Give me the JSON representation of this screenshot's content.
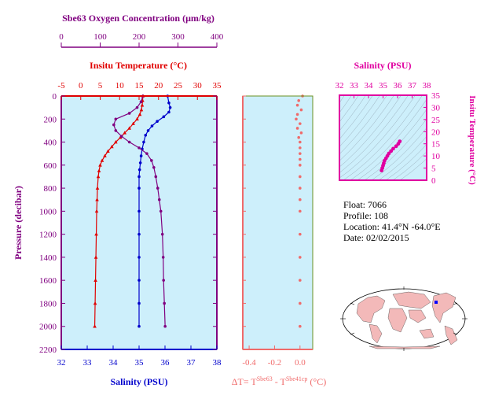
{
  "colors": {
    "oxygen": "#800080",
    "temperature": "#e00000",
    "salinity": "#0000cc",
    "delta_t": "#f06a6a",
    "ts": "#e000a0",
    "panel_bg": "#cdeffb",
    "frame": "#6a9020"
  },
  "axes": {
    "oxygen_title": "Sbe63 Oxygen Concentration (μm/kg)",
    "temp_title": "Insitu Temperature (°C)",
    "salinity_title": "Salinity (PSU)",
    "pressure_title": "Pressure (decibar)",
    "delta_title": "ΔT= T",
    "delta_sup1": "Sbe63",
    "delta_mid": " - T",
    "delta_sup2": "Sbe41cp",
    "delta_unit": " (°C)",
    "ts_sal_title": "Salinity (PSU)",
    "ts_temp_title": "Insitu Temperature (°C)",
    "oxygen_ticks": [
      "0",
      "100",
      "200",
      "300",
      "400"
    ],
    "temp_ticks": [
      "-5",
      "0",
      "5",
      "10",
      "15",
      "20",
      "25",
      "30",
      "35"
    ],
    "salinity_ticks": [
      "32",
      "33",
      "34",
      "35",
      "36",
      "37",
      "38"
    ],
    "pressure_ticks": [
      "0",
      "200",
      "400",
      "600",
      "800",
      "1000",
      "1200",
      "1400",
      "1600",
      "1800",
      "2000",
      "2200"
    ],
    "delta_ticks": [
      "-0.4",
      "-0.2",
      "0.0"
    ],
    "ts_sal_ticks": [
      "32",
      "33",
      "34",
      "35",
      "36",
      "37",
      "38"
    ],
    "ts_temp_ticks": [
      "0",
      "5",
      "10",
      "15",
      "20",
      "25",
      "30",
      "35"
    ]
  },
  "info": {
    "float": "Float:  7066",
    "profile": "Profile:  108",
    "location": "Location:  41.4°N  -64.0°E",
    "date": "Date:  02/02/2015"
  },
  "chart_data": [
    {
      "type": "line",
      "yaxis": "Pressure (decibar)",
      "ylim": [
        2200,
        0
      ],
      "series": [
        {
          "name": "Insitu Temperature (°C)",
          "xlim": [
            -5,
            35
          ],
          "points": [
            [
              16,
              0
            ],
            [
              15.9,
              40
            ],
            [
              15.8,
              80
            ],
            [
              15.6,
              120
            ],
            [
              15.2,
              160
            ],
            [
              14.5,
              200
            ],
            [
              13.5,
              240
            ],
            [
              12.5,
              280
            ],
            [
              11.3,
              320
            ],
            [
              10.2,
              360
            ],
            [
              9,
              400
            ],
            [
              8,
              440
            ],
            [
              7,
              480
            ],
            [
              6.2,
              520
            ],
            [
              5.5,
              560
            ],
            [
              5,
              600
            ],
            [
              4.7,
              650
            ],
            [
              4.5,
              700
            ],
            [
              4.3,
              800
            ],
            [
              4.2,
              900
            ],
            [
              4.1,
              1000
            ],
            [
              4,
              1200
            ],
            [
              3.9,
              1400
            ],
            [
              3.8,
              1600
            ],
            [
              3.7,
              1800
            ],
            [
              3.6,
              2000
            ]
          ]
        },
        {
          "name": "Salinity (PSU)",
          "xlim": [
            32,
            38
          ],
          "points": [
            [
              36.1,
              0
            ],
            [
              36.15,
              60
            ],
            [
              36.2,
              100
            ],
            [
              36.15,
              140
            ],
            [
              35.95,
              180
            ],
            [
              35.7,
              220
            ],
            [
              35.5,
              260
            ],
            [
              35.35,
              300
            ],
            [
              35.25,
              340
            ],
            [
              35.18,
              400
            ],
            [
              35.12,
              460
            ],
            [
              35.08,
              520
            ],
            [
              35.05,
              580
            ],
            [
              35.02,
              640
            ],
            [
              35,
              700
            ],
            [
              35,
              800
            ],
            [
              35,
              1000
            ],
            [
              35,
              1200
            ],
            [
              35,
              1400
            ],
            [
              35,
              1600
            ],
            [
              35,
              1800
            ],
            [
              35,
              2000
            ]
          ]
        },
        {
          "name": "Sbe63 Oxygen Concentration (μm/kg)",
          "xlim": [
            0,
            400
          ],
          "points": [
            [
              210,
              0
            ],
            [
              205,
              50
            ],
            [
              195,
              100
            ],
            [
              175,
              150
            ],
            [
              140,
              200
            ],
            [
              135,
              250
            ],
            [
              140,
              300
            ],
            [
              155,
              350
            ],
            [
              175,
              400
            ],
            [
              200,
              450
            ],
            [
              220,
              500
            ],
            [
              232,
              560
            ],
            [
              238,
              620
            ],
            [
              243,
              700
            ],
            [
              248,
              800
            ],
            [
              252,
              900
            ],
            [
              256,
              1000
            ],
            [
              260,
              1200
            ],
            [
              262,
              1400
            ],
            [
              263,
              1600
            ],
            [
              265,
              1800
            ],
            [
              267,
              2000
            ]
          ]
        }
      ]
    },
    {
      "type": "scatter",
      "name": "ΔT= TSbe63 - TSbe41cp (°C)",
      "xlim": [
        -0.45,
        0.1
      ],
      "ylim": [
        2200,
        0
      ],
      "points": [
        [
          0.02,
          0
        ],
        [
          -0.01,
          40
        ],
        [
          -0.02,
          80
        ],
        [
          0.01,
          120
        ],
        [
          -0.02,
          160
        ],
        [
          -0.03,
          200
        ],
        [
          0,
          240
        ],
        [
          -0.02,
          280
        ],
        [
          0.01,
          320
        ],
        [
          -0.01,
          360
        ],
        [
          0,
          400
        ],
        [
          0,
          450
        ],
        [
          0,
          500
        ],
        [
          0,
          550
        ],
        [
          0,
          600
        ],
        [
          0,
          700
        ],
        [
          0,
          800
        ],
        [
          0,
          900
        ],
        [
          0,
          1000
        ],
        [
          0,
          1200
        ],
        [
          0,
          1400
        ],
        [
          0,
          1600
        ],
        [
          0,
          1800
        ],
        [
          0,
          2000
        ]
      ]
    },
    {
      "type": "line",
      "name": "T-S",
      "xlabel": "Salinity (PSU)",
      "ylabel": "Insitu Temperature (°C)",
      "xlim": [
        32,
        38
      ],
      "ylim": [
        0,
        35
      ],
      "points": [
        [
          34.9,
          4
        ],
        [
          34.95,
          5
        ],
        [
          35,
          6
        ],
        [
          35.05,
          7
        ],
        [
          35.1,
          8
        ],
        [
          35.2,
          9
        ],
        [
          35.3,
          10
        ],
        [
          35.4,
          11
        ],
        [
          35.55,
          12
        ],
        [
          35.7,
          13
        ],
        [
          35.9,
          14
        ],
        [
          36.05,
          15
        ],
        [
          36.15,
          16
        ]
      ]
    }
  ]
}
